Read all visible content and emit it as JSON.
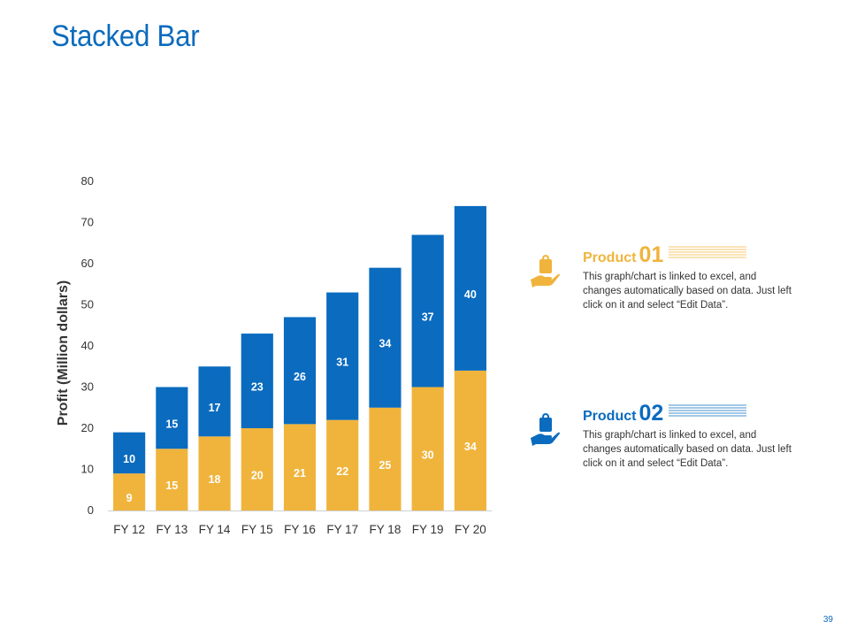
{
  "slide": {
    "title": "Stacked Bar",
    "page_number": "39"
  },
  "legend": [
    {
      "name": "Product",
      "number": "01",
      "color": "#f0b43c",
      "icon": "hand-holding-bag-icon",
      "description": "This graph/chart is linked to excel, and changes automatically based on data. Just left click on it and select “Edit Data”."
    },
    {
      "name": "Product",
      "number": "02",
      "color": "#0a6bbf",
      "icon": "hand-holding-bag-icon",
      "description": "This graph/chart is linked to excel, and changes automatically based on data. Just left click on it and select “Edit Data”."
    }
  ],
  "chart_data": {
    "type": "bar",
    "stacked": true,
    "categories": [
      "FY 12",
      "FY 13",
      "FY 14",
      "FY 15",
      "FY 16",
      "FY 17",
      "FY 18",
      "FY 19",
      "FY 20"
    ],
    "series": [
      {
        "color": "#f0b43c",
        "values": [
          9,
          15,
          18,
          20,
          21,
          22,
          25,
          30,
          34
        ]
      },
      {
        "color": "#0a6bbf",
        "values": [
          10,
          15,
          17,
          23,
          26,
          31,
          34,
          37,
          40
        ]
      }
    ],
    "ylabel": "Profit  (Million dollars)",
    "xlabel": "",
    "ylim": [
      0,
      80
    ],
    "yticks": [
      0,
      10,
      20,
      30,
      40,
      50,
      60,
      70,
      80
    ],
    "grid": false,
    "data_labels": true
  }
}
